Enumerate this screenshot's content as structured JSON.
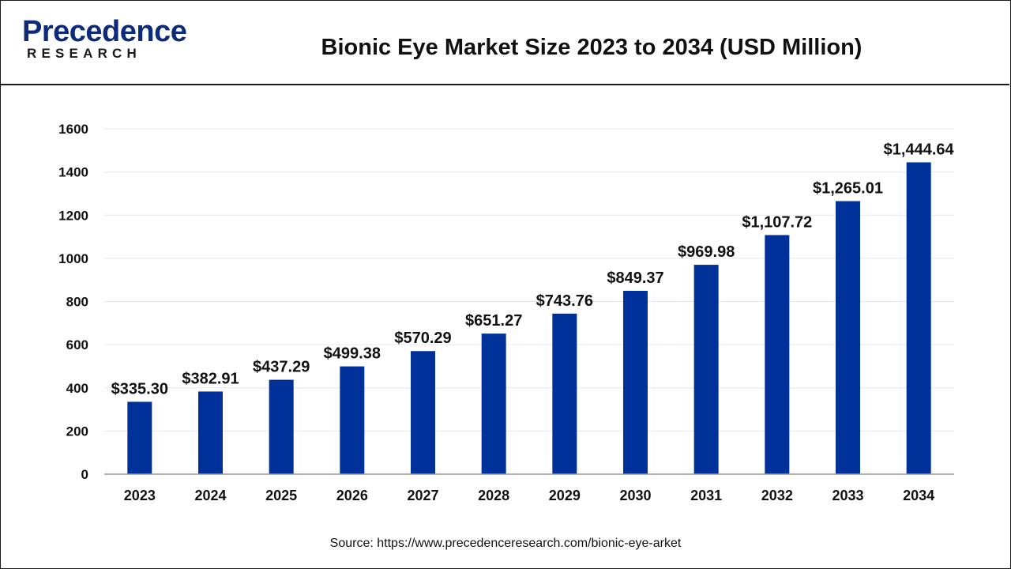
{
  "header": {
    "logo_primary": "Precedence",
    "logo_secondary": "RESEARCH",
    "title": "Bionic Eye Market Size 2023 to 2034 (USD Million)"
  },
  "footer": {
    "source": "Source: https://www.precedenceresearch.com/bionic-eye-arket"
  },
  "colors": {
    "bar": "#00319b",
    "logo": "#0d2b7a",
    "grid": "#e6e6e6",
    "axis": "#9a9a9a",
    "text": "#111111"
  },
  "chart_data": {
    "type": "bar",
    "title": "Bionic Eye Market Size 2023 to 2034 (USD Million)",
    "xlabel": "",
    "ylabel": "",
    "categories": [
      "2023",
      "2024",
      "2025",
      "2026",
      "2027",
      "2028",
      "2029",
      "2030",
      "2031",
      "2032",
      "2033",
      "2034"
    ],
    "values": [
      335.3,
      382.91,
      437.29,
      499.38,
      570.29,
      651.27,
      743.76,
      849.37,
      969.98,
      1107.72,
      1265.01,
      1444.64
    ],
    "data_labels": [
      "$335.30",
      "$382.91",
      "$437.29",
      "$499.38",
      "$570.29",
      "$651.27",
      "$743.76",
      "$849.37",
      "$969.98",
      "$1,107.72",
      "$1,265.01",
      "$1,444.64"
    ],
    "yticks": [
      0,
      200,
      400,
      600,
      800,
      1000,
      1200,
      1400,
      1600
    ],
    "ylim": [
      0,
      1600
    ],
    "grid": true,
    "legend": "none"
  }
}
